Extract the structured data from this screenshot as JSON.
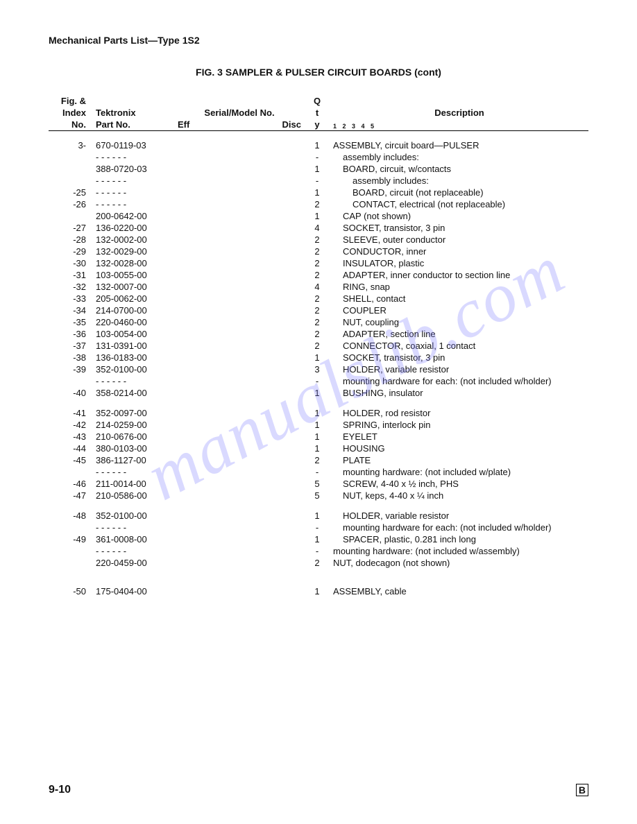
{
  "header": {
    "section": "Mechanical Parts List—Type 1S2",
    "fig_title": "FIG. 3   SAMPLER & PULSER CIRCUIT BOARDS (cont)"
  },
  "columns": {
    "c1a": "Fig. &",
    "c1b": "Index",
    "c1c": "No.",
    "c2a": "Tektronix",
    "c2b": "Part No.",
    "c3a": "Serial/Model No.",
    "c3b": "Eff",
    "c3c": "Disc",
    "c4a": "Q",
    "c4b": "t",
    "c4c": "y",
    "c5a": "Description",
    "c5b": "1 2 3 4 5"
  },
  "rows": [
    {
      "idx": "3-",
      "part": "670-0119-03",
      "qty": "1",
      "desc": "ASSEMBLY, circuit board—PULSER",
      "indent": 0
    },
    {
      "idx": "",
      "part": "- - - - - -",
      "qty": "-",
      "desc": "assembly includes:",
      "indent": 1
    },
    {
      "idx": "",
      "part": "388-0720-03",
      "qty": "1",
      "desc": "BOARD, circuit, w/contacts",
      "indent": 1
    },
    {
      "idx": "",
      "part": "- - - - - -",
      "qty": "-",
      "desc": "assembly includes:",
      "indent": 2
    },
    {
      "idx": "-25",
      "part": "- - - - - -",
      "qty": "1",
      "desc": "BOARD, circuit (not replaceable)",
      "indent": 2
    },
    {
      "idx": "-26",
      "part": "- - - - - -",
      "qty": "2",
      "desc": "CONTACT, electrical (not replaceable)",
      "indent": 2
    },
    {
      "idx": "",
      "part": "200-0642-00",
      "qty": "1",
      "desc": "CAP (not shown)",
      "indent": 1
    },
    {
      "idx": "-27",
      "part": "136-0220-00",
      "qty": "4",
      "desc": "SOCKET, transistor, 3 pin",
      "indent": 1
    },
    {
      "idx": "-28",
      "part": "132-0002-00",
      "qty": "2",
      "desc": "SLEEVE, outer conductor",
      "indent": 1
    },
    {
      "idx": "-29",
      "part": "132-0029-00",
      "qty": "2",
      "desc": "CONDUCTOR, inner",
      "indent": 1
    },
    {
      "idx": "-30",
      "part": "132-0028-00",
      "qty": "2",
      "desc": "INSULATOR, plastic",
      "indent": 1
    },
    {
      "idx": "-31",
      "part": "103-0055-00",
      "qty": "2",
      "desc": "ADAPTER, inner conductor to section line",
      "indent": 1
    },
    {
      "idx": "-32",
      "part": "132-0007-00",
      "qty": "4",
      "desc": "RING, snap",
      "indent": 1
    },
    {
      "idx": "-33",
      "part": "205-0062-00",
      "qty": "2",
      "desc": "SHELL, contact",
      "indent": 1
    },
    {
      "idx": "-34",
      "part": "214-0700-00",
      "qty": "2",
      "desc": "COUPLER",
      "indent": 1
    },
    {
      "idx": "-35",
      "part": "220-0460-00",
      "qty": "2",
      "desc": "NUT, coupling",
      "indent": 1
    },
    {
      "idx": "-36",
      "part": "103-0054-00",
      "qty": "2",
      "desc": "ADAPTER, section line",
      "indent": 1
    },
    {
      "idx": "-37",
      "part": "131-0391-00",
      "qty": "2",
      "desc": "CONNECTOR, coaxial, 1 contact",
      "indent": 1
    },
    {
      "idx": "-38",
      "part": "136-0183-00",
      "qty": "1",
      "desc": "SOCKET, transistor, 3 pin",
      "indent": 1
    },
    {
      "idx": "-39",
      "part": "352-0100-00",
      "qty": "3",
      "desc": "HOLDER, variable resistor",
      "indent": 1
    },
    {
      "idx": "",
      "part": "- - - - - -",
      "qty": "-",
      "desc": "mounting hardware for each: (not included w/holder)",
      "indent": 1
    },
    {
      "idx": "-40",
      "part": "358-0214-00",
      "qty": "1",
      "desc": "BUSHING, insulator",
      "indent": 1
    },
    {
      "spacer": true
    },
    {
      "idx": "-41",
      "part": "352-0097-00",
      "qty": "1",
      "desc": "HOLDER, rod resistor",
      "indent": 1
    },
    {
      "idx": "-42",
      "part": "214-0259-00",
      "qty": "1",
      "desc": "SPRING, interlock pin",
      "indent": 1
    },
    {
      "idx": "-43",
      "part": "210-0676-00",
      "qty": "1",
      "desc": "EYELET",
      "indent": 1
    },
    {
      "idx": "-44",
      "part": "380-0103-00",
      "qty": "1",
      "desc": "HOUSING",
      "indent": 1
    },
    {
      "idx": "-45",
      "part": "386-1127-00",
      "qty": "2",
      "desc": "PLATE",
      "indent": 1
    },
    {
      "idx": "",
      "part": "- - - - - -",
      "qty": "-",
      "desc": "mounting hardware: (not included w/plate)",
      "indent": 1
    },
    {
      "idx": "-46",
      "part": "211-0014-00",
      "qty": "5",
      "desc": "SCREW, 4-40 x ½ inch, PHS",
      "indent": 1
    },
    {
      "idx": "-47",
      "part": "210-0586-00",
      "qty": "5",
      "desc": "NUT, keps, 4-40 x ¼ inch",
      "indent": 1
    },
    {
      "spacer": true
    },
    {
      "idx": "-48",
      "part": "352-0100-00",
      "qty": "1",
      "desc": "HOLDER, variable resistor",
      "indent": 1
    },
    {
      "idx": "",
      "part": "- - - - - -",
      "qty": "-",
      "desc": "mounting hardware for each: (not included w/holder)",
      "indent": 1
    },
    {
      "idx": "-49",
      "part": "361-0008-00",
      "qty": "1",
      "desc": "SPACER, plastic, 0.281 inch long",
      "indent": 1
    },
    {
      "idx": "",
      "part": "- - - - - -",
      "qty": "-",
      "desc": "mounting hardware: (not included w/assembly)",
      "indent": 0
    },
    {
      "idx": "",
      "part": "220-0459-00",
      "qty": "2",
      "desc": "NUT, dodecagon (not shown)",
      "indent": 0
    },
    {
      "spacer": true
    },
    {
      "spacer": true
    },
    {
      "idx": "-50",
      "part": "175-0404-00",
      "qty": "1",
      "desc": "ASSEMBLY, cable",
      "indent": 0
    }
  ],
  "footer": {
    "page": "9-10",
    "mark": "B"
  },
  "watermark": "manualslib.com"
}
